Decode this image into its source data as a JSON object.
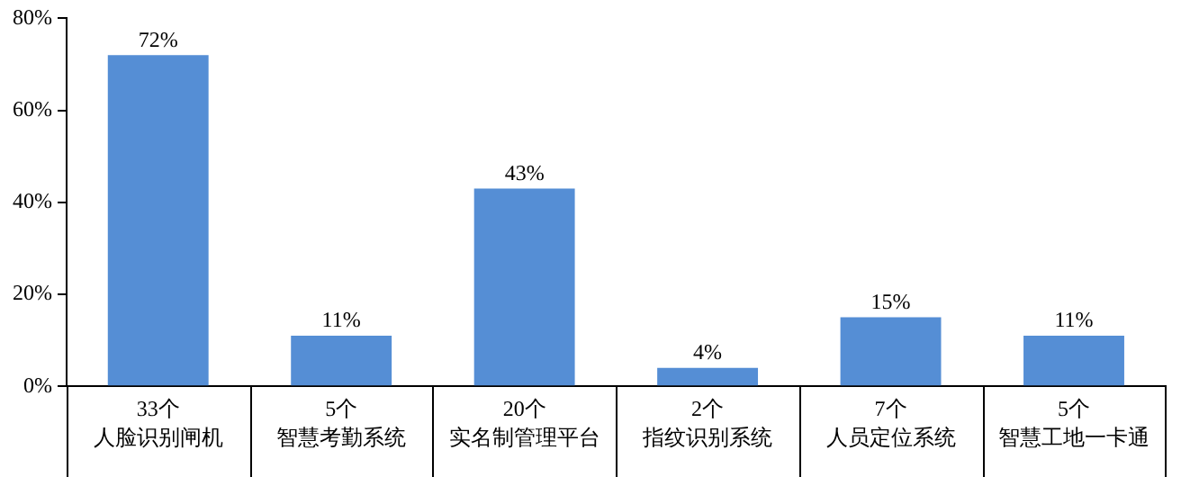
{
  "chart_data": {
    "type": "bar",
    "categories": [
      "人脸识别闸机",
      "智慧考勤系统",
      "实名制管理平台",
      "指纹识别系统",
      "人员定位系统",
      "智慧工地一卡通"
    ],
    "annotations": [
      "33个",
      "5个",
      "20个",
      "2个",
      "7个",
      "5个"
    ],
    "values": [
      72,
      11,
      43,
      4,
      15,
      11
    ],
    "value_labels": [
      "72%",
      "11%",
      "43%",
      "4%",
      "15%",
      "11%"
    ],
    "color": "#558ed5",
    "ylim": [
      0,
      80
    ],
    "yticks": [
      {
        "value": 0,
        "label": "0%"
      },
      {
        "value": 20,
        "label": "20%"
      },
      {
        "value": 40,
        "label": "40%"
      },
      {
        "value": 60,
        "label": "60%"
      },
      {
        "value": 80,
        "label": "80%"
      }
    ],
    "grid": false,
    "legend": false
  }
}
